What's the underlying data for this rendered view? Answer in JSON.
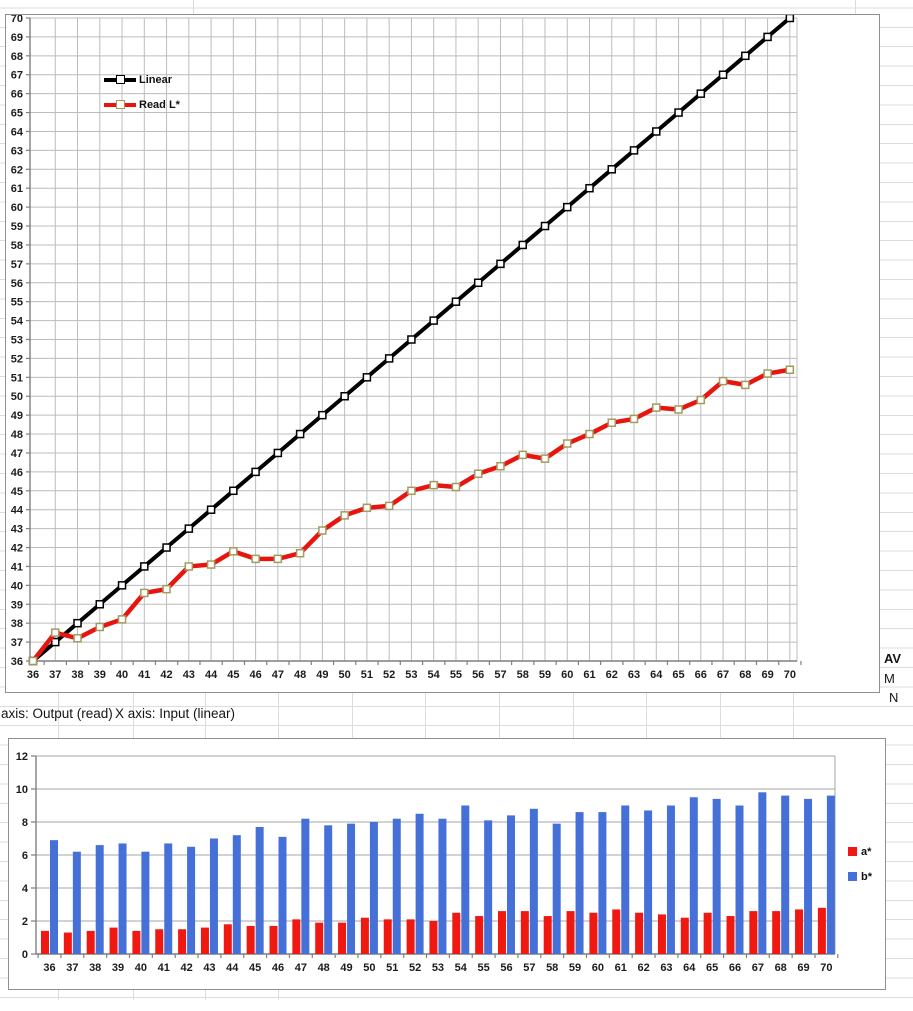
{
  "sheet": {
    "cell_left": "axis: Output (read)",
    "cell_right": "X axis: Input (linear)",
    "side_label_1": "AV",
    "side_label_2": "M",
    "side_label_3": "N"
  },
  "colors": {
    "linear_line": "#000000",
    "read_line": "#e8140e",
    "read_marker_border": "#a39a5e",
    "bar_a": "#f01911",
    "bar_b": "#4470d8",
    "gridline_top": "#bcbcbc",
    "gridline_bottom": "#a6a6a6",
    "axis": "#7f7f7f"
  },
  "chart_data": [
    {
      "type": "line",
      "title": "",
      "xlabel": "",
      "ylabel": "",
      "x": [
        36,
        37,
        38,
        39,
        40,
        41,
        42,
        43,
        44,
        45,
        46,
        47,
        48,
        49,
        50,
        51,
        52,
        53,
        54,
        55,
        56,
        57,
        58,
        59,
        60,
        61,
        62,
        63,
        64,
        65,
        66,
        67,
        68,
        69,
        70
      ],
      "xlim": [
        36,
        70
      ],
      "ylim": [
        36,
        70
      ],
      "ytick_step": 1,
      "grid": "both",
      "legend_position": "inside-upper-left",
      "series": [
        {
          "name": "Linear",
          "values": [
            36,
            37,
            38,
            39,
            40,
            41,
            42,
            43,
            44,
            45,
            46,
            47,
            48,
            49,
            50,
            51,
            52,
            53,
            54,
            55,
            56,
            57,
            58,
            59,
            60,
            61,
            62,
            63,
            64,
            65,
            66,
            67,
            68,
            69,
            70
          ]
        },
        {
          "name": "Read L*",
          "values": [
            36.0,
            37.5,
            37.2,
            37.8,
            38.2,
            39.6,
            39.8,
            41.0,
            41.1,
            41.8,
            41.4,
            41.4,
            41.7,
            42.9,
            43.7,
            44.1,
            44.2,
            45.0,
            45.3,
            45.2,
            45.9,
            46.3,
            46.9,
            46.7,
            47.5,
            48.0,
            48.6,
            48.8,
            49.4,
            49.3,
            49.8,
            50.8,
            50.6,
            51.2,
            51.4
          ]
        }
      ]
    },
    {
      "type": "bar",
      "title": "",
      "xlabel": "",
      "ylabel": "",
      "categories": [
        36,
        37,
        38,
        39,
        40,
        41,
        42,
        43,
        44,
        45,
        46,
        47,
        48,
        49,
        50,
        51,
        52,
        53,
        54,
        55,
        56,
        57,
        58,
        59,
        60,
        61,
        62,
        63,
        64,
        65,
        66,
        67,
        68,
        69,
        70
      ],
      "ylim": [
        0,
        12
      ],
      "ytick_step": 2,
      "grid": "horizontal",
      "legend_position": "right",
      "series": [
        {
          "name": "a*",
          "values": [
            1.4,
            1.3,
            1.4,
            1.6,
            1.4,
            1.5,
            1.5,
            1.6,
            1.8,
            1.7,
            1.7,
            2.1,
            1.9,
            1.9,
            2.2,
            2.1,
            2.1,
            2.0,
            2.5,
            2.3,
            2.6,
            2.6,
            2.3,
            2.6,
            2.5,
            2.7,
            2.5,
            2.4,
            2.2,
            2.5,
            2.3,
            2.6,
            2.6,
            2.7,
            2.8
          ]
        },
        {
          "name": "b*",
          "values": [
            6.9,
            6.2,
            6.6,
            6.7,
            6.2,
            6.7,
            6.5,
            7.0,
            7.2,
            7.7,
            7.1,
            8.2,
            7.8,
            7.9,
            8.0,
            8.2,
            8.5,
            8.2,
            9.0,
            8.1,
            8.4,
            8.8,
            7.9,
            8.6,
            8.6,
            9.0,
            8.7,
            9.0,
            9.5,
            9.4,
            9.0,
            9.8,
            9.6,
            9.4,
            9.6
          ]
        }
      ]
    }
  ]
}
